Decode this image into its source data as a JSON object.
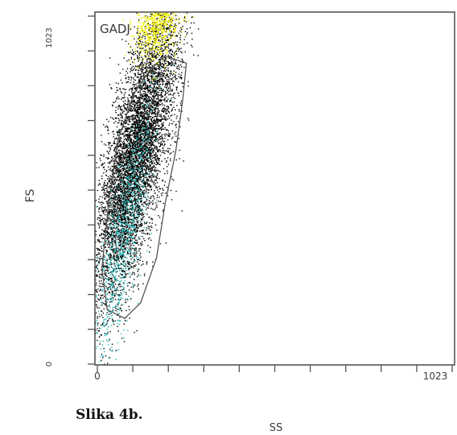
{
  "caption": "Slika 4b.",
  "chart_data": {
    "type": "scatter",
    "title": "",
    "gate_label": "GADJ",
    "xlabel": "SS",
    "ylabel": "FS",
    "xlim": [
      0,
      1023
    ],
    "ylim": [
      0,
      1023
    ],
    "x_tick_labels": [
      "0",
      "1023"
    ],
    "y_tick_labels": [
      "0",
      "1023"
    ],
    "grid": false,
    "colors": {
      "inside_gate": "#000000",
      "outside_gate": "#f2f200",
      "secondary_population": "#1fb5b5",
      "gate_outline": "#555555",
      "axes": "#555555"
    },
    "populations": [
      {
        "color_key": "inside_gate",
        "center": [
          115,
          605
        ],
        "spread": [
          40,
          220
        ],
        "tilt_deg": 78,
        "approx_events": 7000
      },
      {
        "color_key": "secondary_population",
        "center": [
          80,
          380
        ],
        "spread": [
          25,
          180
        ],
        "tilt_deg": 80,
        "approx_events": 900
      },
      {
        "color_key": "outside_gate",
        "center": [
          180,
          1000
        ],
        "spread": [
          30,
          60
        ],
        "tilt_deg": 75,
        "approx_events": 900
      }
    ],
    "gate_polygon": [
      [
        200,
        895
      ],
      [
        260,
        875
      ],
      [
        250,
        770
      ],
      [
        230,
        620
      ],
      [
        200,
        470
      ],
      [
        175,
        310
      ],
      [
        130,
        180
      ],
      [
        85,
        135
      ],
      [
        35,
        160
      ],
      [
        20,
        280
      ],
      [
        40,
        480
      ],
      [
        65,
        650
      ],
      [
        110,
        785
      ],
      [
        160,
        860
      ]
    ]
  }
}
